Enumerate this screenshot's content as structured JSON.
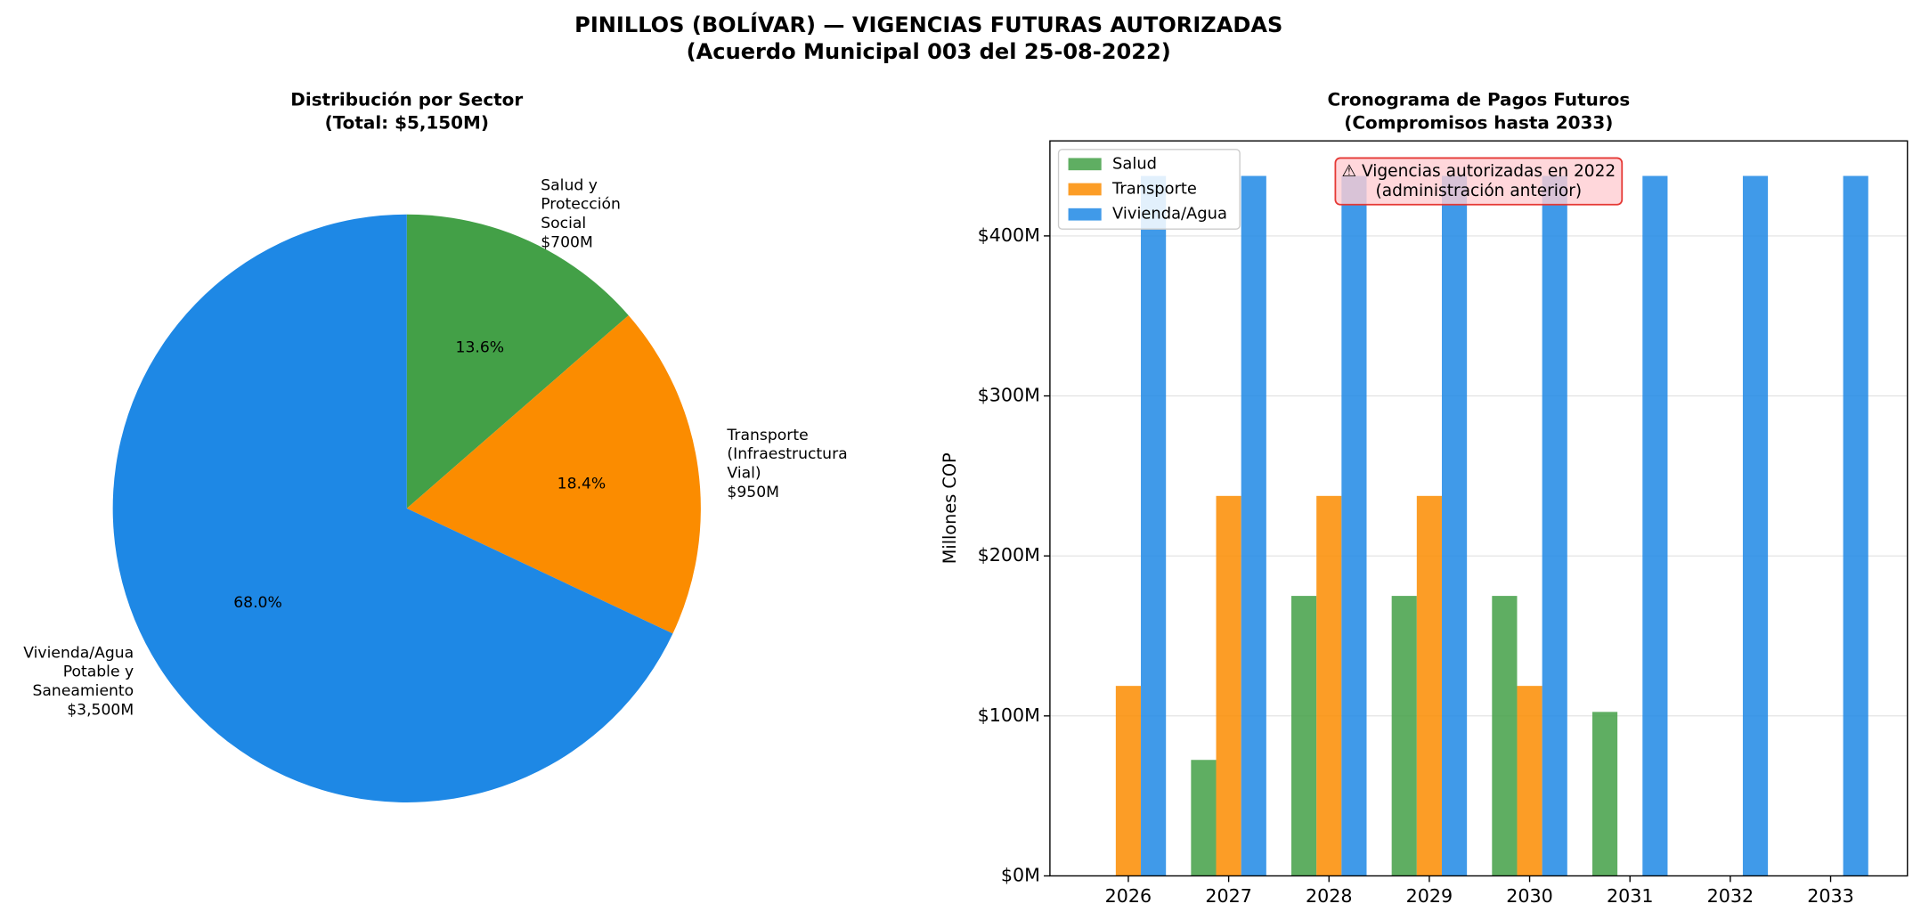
{
  "title": [
    "PINILLOS (BOLÍVAR) — VIGENCIAS FUTURAS AUTORIZADAS",
    "(Acuerdo Municipal 003 del 25-08-2022)"
  ],
  "chart_data": [
    {
      "type": "pie",
      "title": [
        "Distribución por Sector",
        "(Total: $5,150M)"
      ],
      "categories": [
        [
          "Salud y",
          "Protección",
          "Social",
          "$700M"
        ],
        [
          "Transporte",
          "(Infraestructura",
          "Vial)",
          "$950M"
        ],
        [
          "Vivienda/Agua",
          "Potable y",
          "Saneamiento",
          "$3,500M"
        ]
      ],
      "values": [
        13.6,
        18.4,
        68.0
      ],
      "value_labels": [
        "13.6%",
        "18.4%",
        "68.0%"
      ],
      "colors": [
        "#43a047",
        "#fb8c00",
        "#1e88e5"
      ]
    },
    {
      "type": "bar",
      "title": [
        "Cronograma de Pagos Futuros",
        "(Compromisos hasta 2033)"
      ],
      "ylabel": "Millones COP",
      "categories": [
        "2026",
        "2027",
        "2028",
        "2029",
        "2030",
        "2031",
        "2032",
        "2033"
      ],
      "series": [
        {
          "name": "Salud",
          "color": "#43a047",
          "values": [
            0,
            72.5,
            175,
            175,
            175,
            102.5,
            0,
            0
          ]
        },
        {
          "name": "Transporte",
          "color": "#fb8c00",
          "values": [
            118.75,
            237.5,
            237.5,
            237.5,
            118.75,
            0,
            0,
            0
          ]
        },
        {
          "name": "Vivienda/Agua",
          "color": "#1e88e5",
          "values": [
            437.5,
            437.5,
            437.5,
            437.5,
            437.5,
            437.5,
            437.5,
            437.5
          ]
        }
      ],
      "ylim": [
        0,
        459.4
      ],
      "yticks": [
        {
          "value": 0,
          "label": "$0M"
        },
        {
          "value": 100,
          "label": "$100M"
        },
        {
          "value": 200,
          "label": "$200M"
        },
        {
          "value": 300,
          "label": "$300M"
        },
        {
          "value": 400,
          "label": "$400M"
        }
      ],
      "grid": true,
      "legend": "upper left",
      "annotation": [
        "⚠ Vigencias autorizadas en 2022",
        "(administración anterior)"
      ]
    }
  ]
}
